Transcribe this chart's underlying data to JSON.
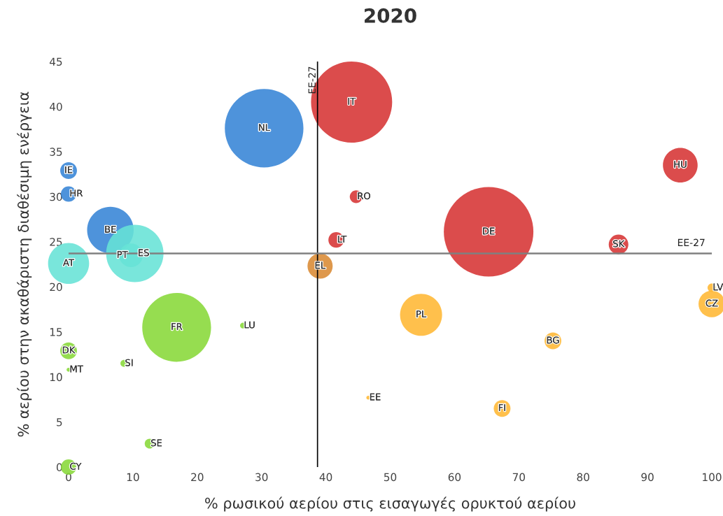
{
  "chart_data": {
    "type": "bubble",
    "title": "2020",
    "xlabel": "% ρωσικού αερίου στις εισαγωγές ορυκτού αερίου",
    "ylabel": "% αερίου στην ακαθάριστη διαθέσιμη ενέργεια",
    "xlim": [
      0,
      100
    ],
    "ylim": [
      0,
      45
    ],
    "xticks": [
      0,
      10,
      20,
      30,
      40,
      50,
      60,
      70,
      80,
      90,
      100
    ],
    "yticks": [
      0,
      5,
      10,
      15,
      20,
      25,
      30,
      35,
      40,
      45
    ],
    "grid": false,
    "legend": false,
    "marker": "circle",
    "series": [
      {
        "color": "#3584d6",
        "x": [
          0,
          0,
          6.5,
          30.4
        ],
        "values": [
          32.9,
          30.3,
          26.3,
          37.6
        ],
        "sizes": [
          0.035,
          0.03,
          0.27,
          0.77
        ]
      },
      {
        "color": "#66e3d6",
        "x": [
          0,
          10.3,
          9.7
        ],
        "values": [
          22.6,
          23.7,
          23.5
        ],
        "sizes": [
          0.21,
          0.41,
          0.07
        ]
      },
      {
        "color": "#d63333",
        "x": [
          44.0,
          44.7,
          41.6,
          65.3,
          85.5,
          95.1
        ],
        "values": [
          40.5,
          30.0,
          25.2,
          26.1,
          24.7,
          33.5
        ],
        "sizes": [
          0.82,
          0.02,
          0.03,
          1,
          0.048,
          0.15
        ]
      },
      {
        "color": "#d98a33",
        "x": [
          39.1
        ],
        "values": [
          22.3
        ],
        "sizes": [
          0.079
        ]
      },
      {
        "color": "#ffb733",
        "x": [
          54.8,
          75.3,
          67.4,
          46.6,
          100,
          100
        ],
        "values": [
          16.9,
          14.0,
          6.5,
          7.7,
          19.9,
          18.1
        ],
        "sizes": [
          0.22,
          0.035,
          0.035,
          0.002,
          0.009,
          0.088
        ]
      },
      {
        "color": "#88d838",
        "x": [
          16.8,
          27.1,
          0,
          0,
          8.6,
          12.6,
          0
        ],
        "values": [
          15.5,
          15.7,
          12.9,
          10.8,
          11.5,
          2.6,
          0
        ],
        "sizes": [
          0.59,
          0.004,
          0.035,
          0.002,
          0.006,
          0.012,
          0.03
        ]
      }
    ],
    "annotations": [
      {
        "text": "IE",
        "x": 0,
        "y": 32.9
      },
      {
        "text": "HR",
        "x": 0,
        "y": 30.3
      },
      {
        "text": "BE",
        "x": 6.5,
        "y": 26.3
      },
      {
        "text": "NL",
        "x": 30.4,
        "y": 37.6
      },
      {
        "text": "AT",
        "x": 0,
        "y": 22.6
      },
      {
        "text": "ES",
        "x": 10.3,
        "y": 23.7
      },
      {
        "text": "PT",
        "x": 9.7,
        "y": 23.5
      },
      {
        "text": "IT",
        "x": 44.0,
        "y": 40.5
      },
      {
        "text": "RO",
        "x": 44.7,
        "y": 30.0
      },
      {
        "text": "LT",
        "x": 41.6,
        "y": 25.2
      },
      {
        "text": "DE",
        "x": 65.3,
        "y": 26.1
      },
      {
        "text": "SK",
        "x": 85.5,
        "y": 24.7
      },
      {
        "text": "HU",
        "x": 95.1,
        "y": 33.5
      },
      {
        "text": "EL",
        "x": 39.1,
        "y": 22.3
      },
      {
        "text": "PL",
        "x": 54.8,
        "y": 16.9
      },
      {
        "text": "BG",
        "x": 75.3,
        "y": 14.0
      },
      {
        "text": "FI",
        "x": 67.4,
        "y": 6.5
      },
      {
        "text": "EE",
        "x": 46.6,
        "y": 7.7
      },
      {
        "text": "LV",
        "x": 100,
        "y": 19.9
      },
      {
        "text": "CZ",
        "x": 100,
        "y": 18.1
      },
      {
        "text": "FR",
        "x": 16.8,
        "y": 15.5
      },
      {
        "text": "LU",
        "x": 27.1,
        "y": 15.7
      },
      {
        "text": "DK",
        "x": 0,
        "y": 12.9
      },
      {
        "text": "MT",
        "x": 0,
        "y": 10.8
      },
      {
        "text": "SI",
        "x": 8.6,
        "y": 11.5
      },
      {
        "text": "SE",
        "x": 12.6,
        "y": 2.6
      },
      {
        "text": "CY",
        "x": 0,
        "y": 0
      }
    ],
    "ref_lines": [
      {
        "axis": "x",
        "value": 38.7,
        "label": "EE-27",
        "color": "#000000"
      },
      {
        "axis": "y",
        "value": 23.7,
        "label": "EE-27",
        "color": "#808080"
      }
    ]
  }
}
